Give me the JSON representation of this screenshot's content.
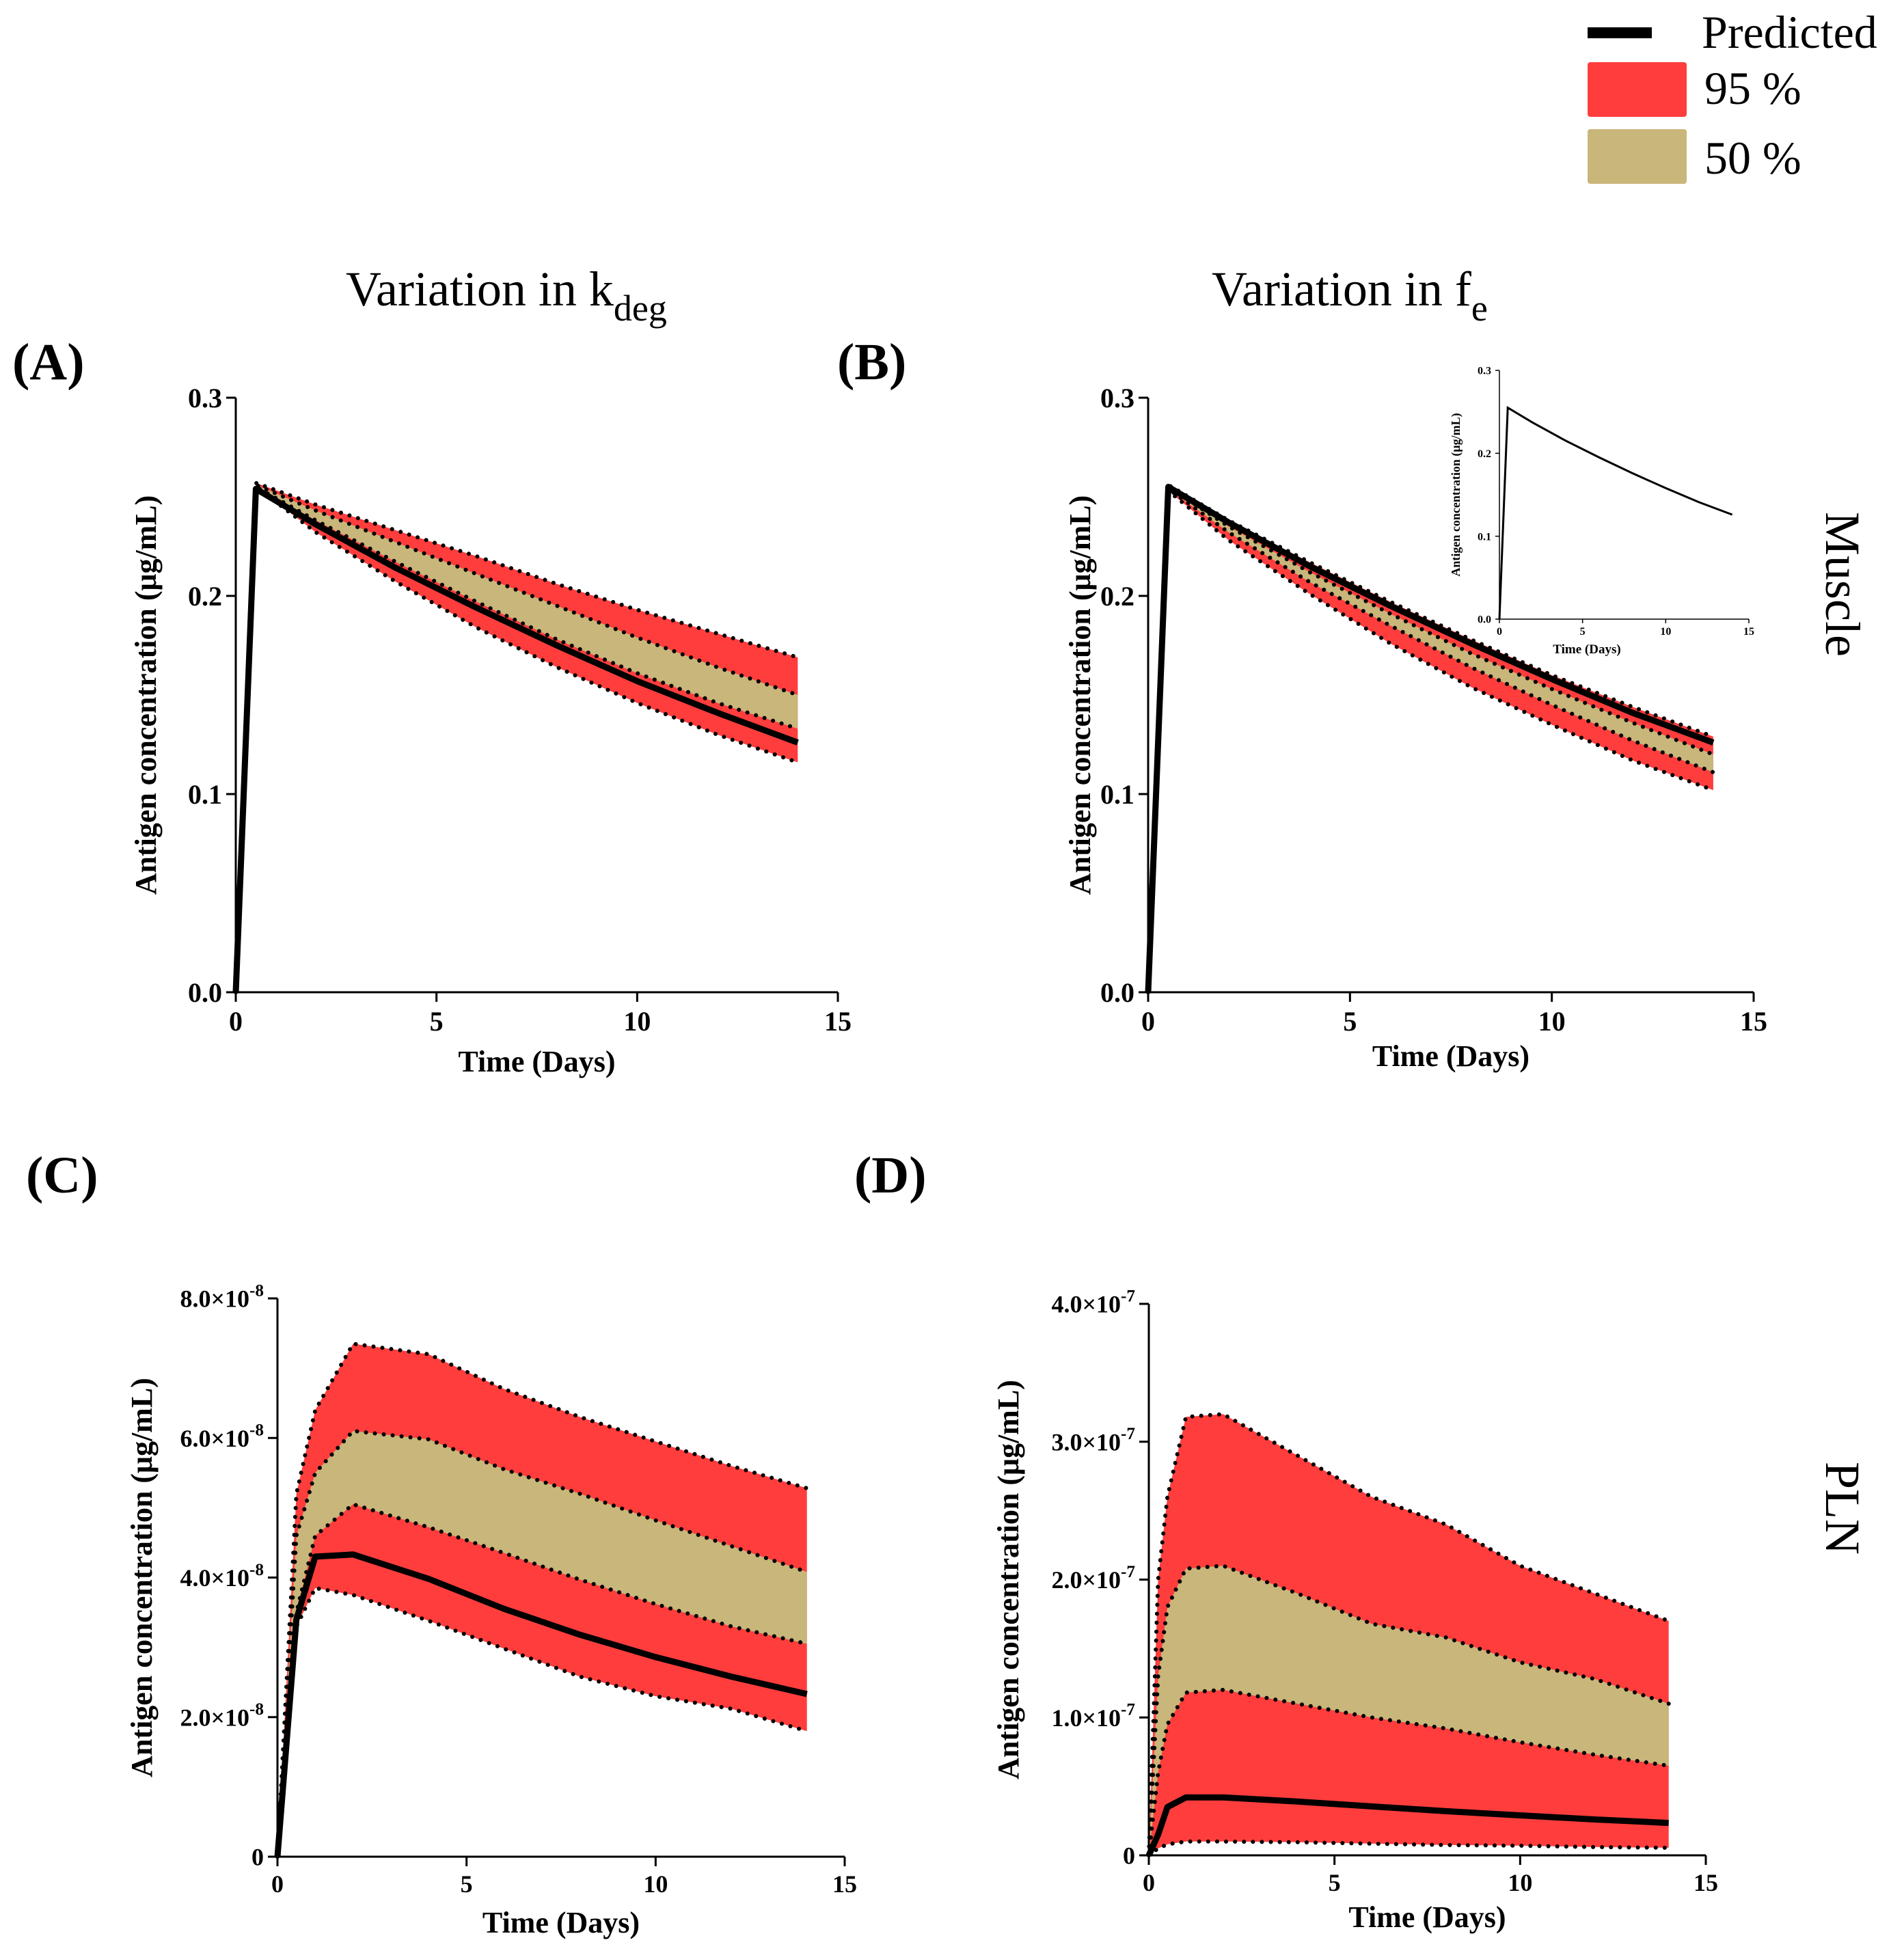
{
  "colors": {
    "band95": "#ff3d3d",
    "band50": "#c8b67a",
    "line": "#000000"
  },
  "legend": {
    "predicted": "Predicted",
    "band95": "95 %",
    "band50": "50 %"
  },
  "column_titles": [
    {
      "main": "Variation in k",
      "sub": "deg"
    },
    {
      "main": "Variation in f",
      "sub": "e"
    }
  ],
  "row_labels": [
    "Muscle",
    "PLN"
  ],
  "chart_data": [
    {
      "id": "A",
      "letter": "(A)",
      "type": "area",
      "xlabel": "Time  (Days)",
      "ylabel": "Antigen concentration  (μg/mL)",
      "xlim": [
        0,
        15
      ],
      "ylim": [
        0,
        0.3
      ],
      "xticks": [
        "0",
        "5",
        "10",
        "15"
      ],
      "yticks": [
        "0.0",
        "0.1",
        "0.2",
        "0.3"
      ],
      "x": [
        0,
        0.5,
        2,
        4,
        6,
        8,
        10,
        12,
        14
      ],
      "predicted": [
        0,
        0.254,
        0.236,
        0.214,
        0.194,
        0.175,
        0.157,
        0.141,
        0.126
      ],
      "p95_low": [
        0,
        0.255,
        0.232,
        0.207,
        0.184,
        0.164,
        0.146,
        0.13,
        0.116
      ],
      "p50_low": [
        0,
        0.255,
        0.238,
        0.217,
        0.197,
        0.178,
        0.161,
        0.146,
        0.133
      ],
      "p50_high": [
        0,
        0.256,
        0.243,
        0.227,
        0.211,
        0.195,
        0.179,
        0.164,
        0.15
      ],
      "p95_high": [
        0,
        0.257,
        0.246,
        0.233,
        0.22,
        0.206,
        0.193,
        0.181,
        0.169
      ]
    },
    {
      "id": "B",
      "letter": "(B)",
      "type": "area",
      "xlabel": "Time  (Days)",
      "ylabel": "Antigen concentration  (μg/mL)",
      "xlim": [
        0,
        15
      ],
      "ylim": [
        0,
        0.3
      ],
      "xticks": [
        "0",
        "5",
        "10",
        "15"
      ],
      "yticks": [
        "0.0",
        "0.1",
        "0.2",
        "0.3"
      ],
      "x": [
        0,
        0.5,
        2,
        4,
        6,
        8,
        10,
        12,
        14
      ],
      "predicted": [
        0,
        0.255,
        0.237,
        0.215,
        0.195,
        0.176,
        0.158,
        0.141,
        0.126
      ],
      "p95_low": [
        0,
        0.253,
        0.228,
        0.201,
        0.176,
        0.154,
        0.135,
        0.117,
        0.102
      ],
      "p50_low": [
        0,
        0.254,
        0.232,
        0.207,
        0.185,
        0.164,
        0.145,
        0.127,
        0.111
      ],
      "p50_high": [
        0,
        0.255,
        0.235,
        0.212,
        0.191,
        0.171,
        0.153,
        0.136,
        0.12
      ],
      "p95_high": [
        0,
        0.256,
        0.238,
        0.217,
        0.197,
        0.178,
        0.16,
        0.144,
        0.129
      ],
      "inset": {
        "xlabel": "Time  (Days)",
        "ylabel": "Antigen concentration  (μg/mL)",
        "xlim": [
          0,
          15
        ],
        "ylim": [
          0,
          0.3
        ],
        "xticks": [
          "0",
          "5",
          "10",
          "15"
        ],
        "yticks": [
          "0.0",
          "0.1",
          "0.2",
          "0.3"
        ],
        "x": [
          0,
          0.5,
          2,
          4,
          6,
          8,
          10,
          12,
          14
        ],
        "predicted": [
          0,
          0.255,
          0.237,
          0.215,
          0.195,
          0.176,
          0.158,
          0.141,
          0.126
        ]
      }
    },
    {
      "id": "C",
      "letter": "(C)",
      "type": "area",
      "xlabel": "Time  (Days)",
      "ylabel": "Antigen concentration  (μg/mL)",
      "xlim": [
        0,
        15
      ],
      "ylim": [
        0,
        8e-08
      ],
      "xticks": [
        "0",
        "5",
        "10",
        "15"
      ],
      "yticks": [
        {
          "mant": "0",
          "exp": ""
        },
        {
          "mant": "2.0×10",
          "exp": "-8"
        },
        {
          "mant": "4.0×10",
          "exp": "-8"
        },
        {
          "mant": "6.0×10",
          "exp": "-8"
        },
        {
          "mant": "8.0×10",
          "exp": "-8"
        }
      ],
      "x": [
        0,
        0.5,
        1,
        2,
        4,
        6,
        8,
        10,
        12,
        14
      ],
      "predicted": [
        0,
        3.4e-08,
        4.3e-08,
        4.33e-08,
        3.98e-08,
        3.55e-08,
        3.18e-08,
        2.86e-08,
        2.58e-08,
        2.33e-08
      ],
      "p95_low": [
        0,
        3.3e-08,
        3.85e-08,
        3.75e-08,
        3.38e-08,
        2.98e-08,
        2.58e-08,
        2.3e-08,
        2.12e-08,
        1.8e-08
      ],
      "p50_low": [
        0,
        3.5e-08,
        4.6e-08,
        5.05e-08,
        4.72e-08,
        4.35e-08,
        3.97e-08,
        3.62e-08,
        3.3e-08,
        3.05e-08
      ],
      "p50_high": [
        0,
        4.6e-08,
        5.5e-08,
        6.1e-08,
        5.98e-08,
        5.55e-08,
        5.2e-08,
        4.82e-08,
        4.45e-08,
        4.08e-08
      ],
      "p95_high": [
        0,
        5.2e-08,
        6.4e-08,
        7.35e-08,
        7.2e-08,
        6.7e-08,
        6.3e-08,
        5.95e-08,
        5.6e-08,
        5.28e-08
      ]
    },
    {
      "id": "D",
      "letter": "(D)",
      "type": "area",
      "xlabel": "Time  (Days)",
      "ylabel": "Antigen concentration  (μg/mL)",
      "xlim": [
        0,
        15
      ],
      "ylim": [
        0,
        4e-07
      ],
      "xticks": [
        "0",
        "5",
        "10",
        "15"
      ],
      "yticks": [
        {
          "mant": "0",
          "exp": ""
        },
        {
          "mant": "1.0×10",
          "exp": "-7"
        },
        {
          "mant": "2.0×10",
          "exp": "-7"
        },
        {
          "mant": "3.0×10",
          "exp": "-7"
        },
        {
          "mant": "4.0×10",
          "exp": "-7"
        }
      ],
      "x": [
        0,
        0.25,
        0.5,
        1,
        2,
        4,
        6,
        8,
        10,
        12,
        14
      ],
      "predicted": [
        0,
        1.5e-08,
        3.5e-08,
        4.2e-08,
        4.2e-08,
        3.9e-08,
        3.55e-08,
        3.2e-08,
        2.9e-08,
        2.6e-08,
        2.35e-08
      ],
      "p95_low": [
        0,
        5e-09,
        8e-09,
        1e-08,
        1e-08,
        9.5e-09,
        8.5e-09,
        7.5e-09,
        7e-09,
        6e-09,
        5.5e-09
      ],
      "p50_low": [
        0,
        6e-08,
        9.5e-08,
        1.18e-07,
        1.2e-07,
        1.1e-07,
        1e-07,
        9.2e-08,
        8.2e-08,
        7.3e-08,
        6.5e-08
      ],
      "p50_high": [
        0,
        1.3e-07,
        1.8e-07,
        2.08e-07,
        2.1e-07,
        1.9e-07,
        1.68e-07,
        1.58e-07,
        1.4e-07,
        1.28e-07,
        1.1e-07
      ],
      "p95_high": [
        0,
        2e-07,
        2.6e-07,
        3.18e-07,
        3.2e-07,
        2.9e-07,
        2.6e-07,
        2.4e-07,
        2.1e-07,
        1.9e-07,
        1.7e-07
      ]
    }
  ]
}
